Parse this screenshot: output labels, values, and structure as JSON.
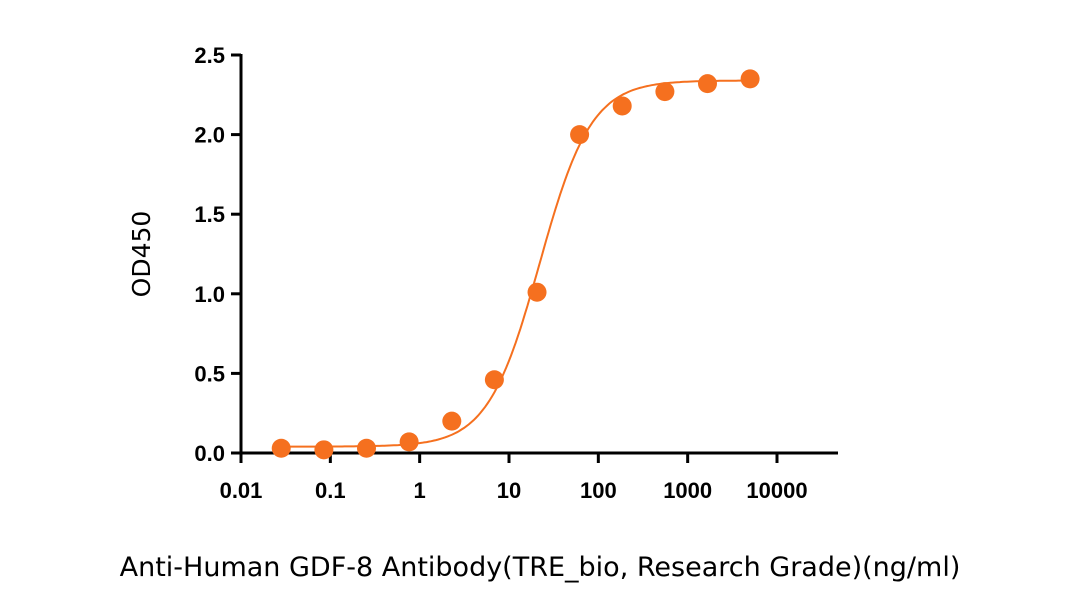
{
  "chart_data": {
    "type": "scatter",
    "title": "",
    "xlabel": "Anti-Human GDF-8 Antibody(TRE_bio, Research Grade)(ng/ml)",
    "ylabel": "OD450",
    "xscale": "log",
    "xlim": [
      0.01,
      10000
    ],
    "ylim": [
      0,
      2.5
    ],
    "xticks": [
      "0.01",
      "0.1",
      "1",
      "10",
      "100",
      "1000",
      "10000"
    ],
    "yticks": [
      "0.0",
      "0.5",
      "1.0",
      "1.5",
      "2.0",
      "2.5"
    ],
    "grid": false,
    "color": "#f5701f",
    "series": [
      {
        "name": "OD450",
        "x": [
          0.0282,
          0.0847,
          0.254,
          0.762,
          2.29,
          6.86,
          20.6,
          61.7,
          185,
          556,
          1667,
          5000
        ],
        "y": [
          0.03,
          0.02,
          0.03,
          0.07,
          0.2,
          0.46,
          1.01,
          2.0,
          2.18,
          2.27,
          2.32,
          2.35
        ]
      }
    ],
    "fit": {
      "model": "4PL",
      "bottom": 0.04,
      "top": 2.34,
      "ec50": 22,
      "hill": 1.5
    }
  }
}
